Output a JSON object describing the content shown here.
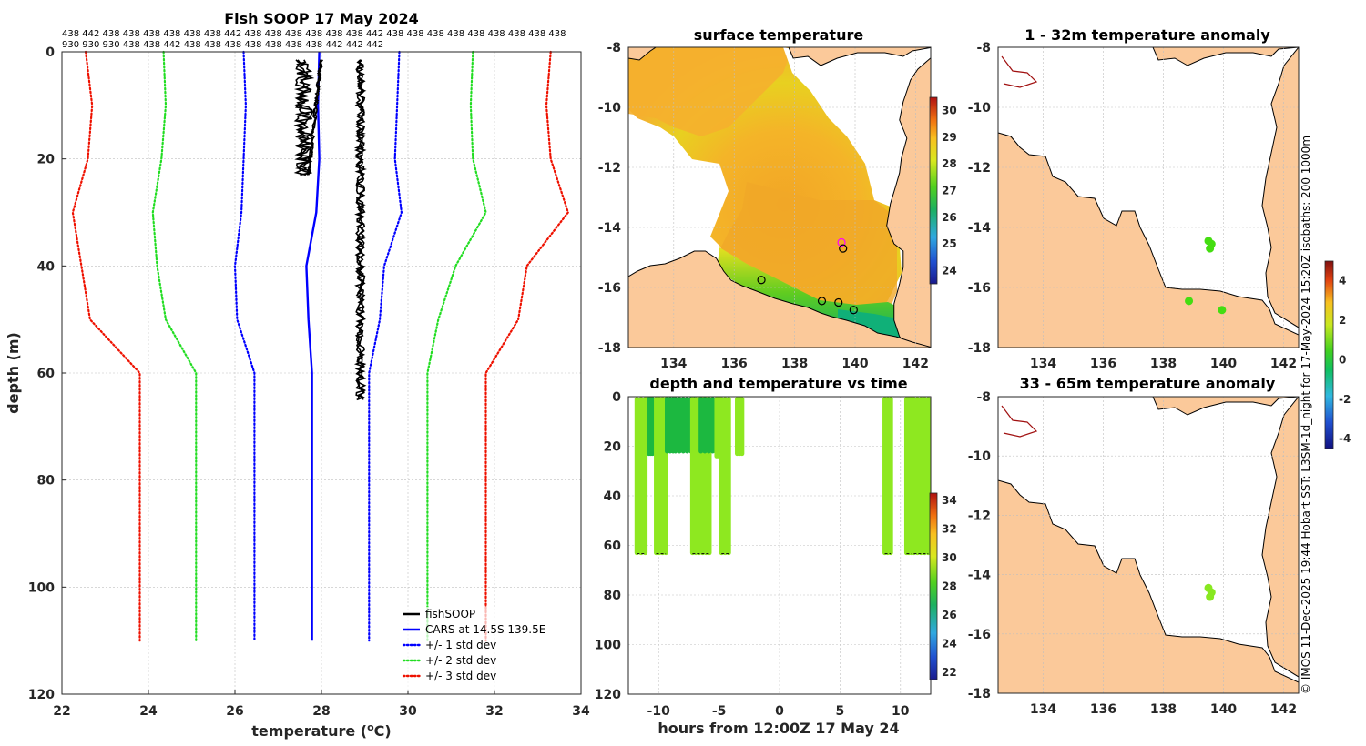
{
  "credit": "© IMOS 11-Dec-2025 19:44 Hobart SST: L3SM-1d_night for 17-May-2024 15:20Z  isobaths: 200  1000m",
  "colors": {
    "fishsoop": "#000000",
    "cars": "#0000ff",
    "std1": "#0000ff",
    "std2": "#22dd22",
    "std3": "#ee1100",
    "land": "#fbc99a",
    "grid": "#bfbfbf"
  },
  "chart_data": [
    {
      "id": "profile",
      "type": "line",
      "title": "Fish SOOP 17 May 2024",
      "xlabel": "temperature (°C)",
      "xlabel_main": "temperature (",
      "xlabel_unit": "C)",
      "ylabel": "depth (m)",
      "xlim": [
        22,
        34
      ],
      "ylim": [
        120,
        0
      ],
      "xticks": [
        "22",
        "24",
        "26",
        "28",
        "30",
        "32",
        "34"
      ],
      "yticks": [
        "0",
        "20",
        "40",
        "60",
        "80",
        "100",
        "120"
      ],
      "id_row1": "438 442 438 438 438 438 438 438 442 438 438 438 438 438 438 442 438 438 438 438 438 438 438 438 438",
      "id_row2": "930 930 930 438 438 442 438 438 438 438 438 438 438 442 442 442",
      "depth": [
        0,
        10,
        20,
        30,
        40,
        50,
        60,
        110
      ],
      "series": [
        {
          "name": "CARS at 14.5S 139.5E",
          "style": "solid",
          "color": "#0000ff",
          "x": [
            27.95,
            27.92,
            27.95,
            27.88,
            27.65,
            27.7,
            27.78,
            27.78
          ]
        },
        {
          "name": "+/- 1 std dev",
          "style": "dotted",
          "color": "#0000ff",
          "x": [
            29.8,
            29.75,
            29.7,
            29.85,
            29.45,
            29.35,
            29.1,
            29.1
          ]
        },
        {
          "name": "+/- 1 std dev (lower)",
          "style": "dotted",
          "color": "#0000ff",
          "legend": false,
          "x": [
            26.2,
            26.25,
            26.2,
            26.15,
            26.0,
            26.05,
            26.45,
            26.45
          ]
        },
        {
          "name": "+/- 2 std dev",
          "style": "dotted",
          "color": "#22dd22",
          "x": [
            31.5,
            31.45,
            31.5,
            31.8,
            31.1,
            30.7,
            30.45,
            30.45
          ]
        },
        {
          "name": "+/- 2 std dev (lower)",
          "style": "dotted",
          "color": "#22dd22",
          "legend": false,
          "x": [
            24.35,
            24.4,
            24.3,
            24.1,
            24.2,
            24.4,
            25.1,
            25.1
          ]
        },
        {
          "name": "+/- 3 std dev",
          "style": "dotted",
          "color": "#ee1100",
          "x": [
            33.3,
            33.2,
            33.3,
            33.7,
            32.75,
            32.55,
            31.8,
            31.8
          ]
        },
        {
          "name": "+/- 3 std dev (lower)",
          "style": "dotted",
          "color": "#ee1100",
          "legend": false,
          "x": [
            22.55,
            22.7,
            22.6,
            22.25,
            22.45,
            22.65,
            23.8,
            23.8
          ]
        }
      ],
      "fishsoop": {
        "name": "fishSOOP",
        "casts": [
          {
            "x_min": 27.4,
            "x_max": 27.8,
            "depth_max": 23
          },
          {
            "x_min": 27.7,
            "x_max": 28.05,
            "depth_max": 23
          },
          {
            "x_min": 28.8,
            "x_max": 29.0,
            "depth_max": 65
          }
        ]
      },
      "legend": {
        "position": "bottom-right",
        "entries": [
          "fishSOOP",
          "CARS at 14.5S 139.5E",
          "+/- 1 std dev",
          "+/- 2 std dev",
          "+/- 3 std dev"
        ]
      }
    },
    {
      "id": "sst_map",
      "type": "heatmap",
      "title": "surface temperature",
      "xlim": [
        132.5,
        142.5
      ],
      "ylim": [
        -18,
        -8
      ],
      "xticks": [
        "134",
        "136",
        "138",
        "140",
        "142"
      ],
      "yticks": [
        "-8",
        "-10",
        "-12",
        "-14",
        "-16",
        "-18"
      ],
      "colorbar": {
        "ticks": [
          "24",
          "25",
          "26",
          "27",
          "28",
          "29",
          "30"
        ],
        "range": [
          23.5,
          30.5
        ]
      },
      "stations": [
        {
          "lon": 139.55,
          "lat": -14.5,
          "color": "#ff00ff"
        },
        {
          "lon": 139.6,
          "lat": -14.7,
          "color": "#000000"
        },
        {
          "lon": 138.9,
          "lat": -16.45,
          "color": "#000000"
        },
        {
          "lon": 139.45,
          "lat": -16.5,
          "color": "#000000"
        },
        {
          "lon": 139.95,
          "lat": -16.75,
          "color": "#000000"
        },
        {
          "lon": 136.9,
          "lat": -15.75,
          "color": "#000000"
        }
      ]
    },
    {
      "id": "anomaly_1_32",
      "type": "scatter",
      "title": "1 - 32m temperature anomaly",
      "xlim": [
        132.5,
        142.5
      ],
      "ylim": [
        -18,
        -8
      ],
      "xticks": [
        "134",
        "136",
        "138",
        "140",
        "142"
      ],
      "yticks": [
        "-8",
        "-10",
        "-12",
        "-14",
        "-16",
        "-18"
      ],
      "colorbar": {
        "ticks": [
          "-4",
          "-2",
          "0",
          "2",
          "4"
        ],
        "range": [
          -4.5,
          5
        ]
      },
      "points": [
        {
          "lon": 139.5,
          "lat": -14.45,
          "anomaly": 0.8
        },
        {
          "lon": 139.6,
          "lat": -14.55,
          "anomaly": 0.8
        },
        {
          "lon": 139.55,
          "lat": -14.7,
          "anomaly": 0.8
        },
        {
          "lon": 138.85,
          "lat": -16.45,
          "anomaly": 0.8
        },
        {
          "lon": 139.95,
          "lat": -16.75,
          "anomaly": 0.6
        }
      ]
    },
    {
      "id": "anomaly_33_65",
      "type": "scatter",
      "title": "33 - 65m temperature anomaly",
      "xlim": [
        132.5,
        142.5
      ],
      "ylim": [
        -18,
        -8
      ],
      "xticks": [
        "134",
        "136",
        "138",
        "140",
        "142"
      ],
      "yticks": [
        "-8",
        "-10",
        "-12",
        "-14",
        "-16",
        "-18"
      ],
      "points": [
        {
          "lon": 139.5,
          "lat": -14.45,
          "anomaly": 1.5
        },
        {
          "lon": 139.6,
          "lat": -14.6,
          "anomaly": 1.5
        },
        {
          "lon": 139.55,
          "lat": -14.75,
          "anomaly": 1.5
        }
      ]
    },
    {
      "id": "depth_time",
      "type": "scatter",
      "title": "depth and temperature vs time",
      "xlabel": "hours from 12:00Z 17 May 24",
      "xlim": [
        -12.5,
        12.5
      ],
      "ylim": [
        120,
        0
      ],
      "xticks": [
        "-10",
        "-5",
        "0",
        "5",
        "10"
      ],
      "yticks": [
        "0",
        "20",
        "40",
        "60",
        "80",
        "100",
        "120"
      ],
      "colorbar": {
        "ticks": [
          "22",
          "24",
          "26",
          "28",
          "30",
          "32",
          "34"
        ],
        "range": [
          21.5,
          34.5
        ]
      },
      "casts": [
        {
          "t0": -11.8,
          "t1": -11.1,
          "depth_max": 63,
          "temp": 28.9
        },
        {
          "t0": -10.8,
          "t1": -10.5,
          "depth_max": 23,
          "temp": 28.0
        },
        {
          "t0": -10.2,
          "t1": -9.4,
          "depth_max": 63,
          "temp": 28.9
        },
        {
          "t0": -9.3,
          "t1": -8.8,
          "depth_max": 22,
          "temp": 28.0
        },
        {
          "t0": -8.6,
          "t1": -7.0,
          "depth_max": 22,
          "temp": 28.1
        },
        {
          "t0": -7.2,
          "t1": -5.8,
          "depth_max": 63,
          "temp": 28.9
        },
        {
          "t0": -6.5,
          "t1": -5.2,
          "depth_max": 22,
          "temp": 28.0
        },
        {
          "t0": -5.2,
          "t1": -4.9,
          "depth_max": 24,
          "temp": 28.9
        },
        {
          "t0": -4.8,
          "t1": -4.2,
          "depth_max": 63,
          "temp": 28.9
        },
        {
          "t0": -3.5,
          "t1": -3.1,
          "depth_max": 23,
          "temp": 28.9
        },
        {
          "t0": 8.7,
          "t1": 9.2,
          "depth_max": 63,
          "temp": 28.9
        },
        {
          "t0": 10.5,
          "t1": 10.9,
          "depth_max": 63,
          "temp": 28.9
        },
        {
          "t0": 11.1,
          "t1": 12.3,
          "depth_max": 63,
          "temp": 28.9
        }
      ]
    }
  ]
}
